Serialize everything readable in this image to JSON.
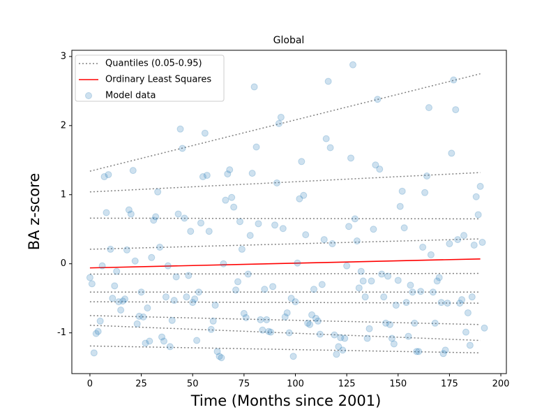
{
  "chart_data": {
    "type": "scatter",
    "title": "Global",
    "x_label": "Time (Months since 2001)",
    "y_label": "BA z-score",
    "xlim": [
      -8.8,
      202.7
    ],
    "ylim": [
      -1.59,
      3.09
    ],
    "xticks": [
      0,
      25,
      50,
      75,
      100,
      125,
      150,
      175,
      200
    ],
    "yticks": [
      -1,
      0,
      1,
      2,
      3
    ],
    "legend": "upper left",
    "series": [
      {
        "name": "Quantiles (0.05-0.95)",
        "color": "#808080",
        "style": "dotted",
        "x": [
          0,
          190
        ],
        "lines": [
          [
            -1.19,
            -1.29
          ],
          [
            -0.89,
            -1.11
          ],
          [
            -0.75,
            -0.88
          ],
          [
            -0.55,
            -0.57
          ],
          [
            -0.41,
            -0.41
          ],
          [
            -0.15,
            -0.14
          ],
          [
            0.21,
            0.36
          ],
          [
            0.66,
            0.65
          ],
          [
            1.04,
            1.32
          ],
          [
            1.34,
            2.75
          ]
        ]
      },
      {
        "name": "Ordinary Least Squares",
        "color": "#ff0000",
        "style": "solid",
        "x": [
          0,
          190
        ],
        "values": [
          -0.06,
          0.07
        ]
      },
      {
        "name": "Model data",
        "color": "#1f77b4",
        "style": "points",
        "x": [
          0,
          1,
          2,
          3,
          4,
          5,
          6,
          7,
          8,
          9,
          10,
          11,
          12,
          13,
          14,
          15,
          16,
          17,
          18,
          19,
          20,
          21,
          22,
          23,
          24,
          25,
          26,
          27,
          28,
          29,
          30,
          31,
          32,
          33,
          34,
          35,
          36,
          37,
          38,
          39,
          40,
          41,
          42,
          43,
          44,
          45,
          46,
          47,
          48,
          49,
          50,
          51,
          52,
          53,
          54,
          55,
          56,
          57,
          58,
          59,
          60,
          61,
          62,
          63,
          64,
          65,
          66,
          67,
          68,
          69,
          70,
          71,
          72,
          73,
          74,
          75,
          76,
          77,
          78,
          79,
          80,
          81,
          82,
          83,
          84,
          85,
          86,
          87,
          88,
          89,
          90,
          91,
          92,
          93,
          94,
          95,
          96,
          97,
          98,
          99,
          100,
          101,
          102,
          103,
          104,
          105,
          106,
          107,
          108,
          109,
          110,
          111,
          112,
          113,
          114,
          115,
          116,
          117,
          118,
          119,
          120,
          121,
          122,
          123,
          124,
          125,
          126,
          127,
          128,
          129,
          130,
          131,
          132,
          133,
          134,
          135,
          136,
          137,
          138,
          139,
          140,
          141,
          142,
          143,
          144,
          145,
          146,
          147,
          148,
          149,
          150,
          151,
          152,
          153,
          154,
          155,
          156,
          157,
          158,
          159,
          160,
          161,
          162,
          163,
          164,
          165,
          166,
          167,
          168,
          169,
          170,
          171,
          172,
          173,
          174,
          175,
          176,
          177,
          178,
          179,
          180,
          181,
          182,
          183,
          184,
          185,
          186,
          187,
          188,
          189,
          190,
          191,
          192
        ],
        "values": [
          -0.2,
          -0.29,
          -1.29,
          -1.01,
          -0.98,
          -0.83,
          -0.03,
          1.26,
          0.74,
          1.29,
          0.21,
          -0.5,
          -0.32,
          -0.11,
          -0.55,
          -0.67,
          -0.54,
          -0.51,
          0.2,
          0.78,
          0.72,
          1.35,
          0.04,
          -0.87,
          -0.76,
          -0.41,
          -0.77,
          -1.15,
          -0.64,
          -1.12,
          0.09,
          0.63,
          0.68,
          1.04,
          0.24,
          -1.06,
          -1.12,
          -0.48,
          -0.03,
          -1.2,
          -0.82,
          -0.53,
          -0.19,
          0.72,
          1.95,
          1.67,
          0.66,
          -0.48,
          -0.17,
          0.47,
          -0.56,
          -0.51,
          -1.11,
          -0.41,
          0.59,
          1.26,
          1.89,
          1.28,
          0.47,
          -0.95,
          -0.83,
          -0.6,
          -1.27,
          -1.34,
          -1.36,
          0,
          0.92,
          1.3,
          1.36,
          0.96,
          0.82,
          -0.38,
          -0.26,
          0.61,
          0.21,
          -0.72,
          -0.78,
          -0.15,
          0.41,
          1.31,
          2.56,
          1.69,
          0.58,
          -0.81,
          -0.96,
          -0.37,
          -0.81,
          -0.98,
          -0.99,
          -0.33,
          0.56,
          1.17,
          2.03,
          2.12,
          0.51,
          -0.77,
          -0.71,
          -1.0,
          -0.5,
          -1.34,
          -0.55,
          0.01,
          0.94,
          1.48,
          0.99,
          0.42,
          -0.86,
          -0.88,
          -0.74,
          -0.37,
          -0.79,
          -0.83,
          -1.02,
          -0.3,
          0.35,
          1.81,
          2.64,
          1.68,
          0.29,
          -1.03,
          -1.31,
          -1.2,
          -1.07,
          -1.25,
          -1.08,
          -0.03,
          0.54,
          1.53,
          2.88,
          0.65,
          0.33,
          -0.35,
          -0.11,
          -0.25,
          -0.48,
          -1.08,
          -0.94,
          -0.25,
          0.5,
          1.43,
          2.38,
          1.37,
          -0.15,
          -0.48,
          -0.86,
          -0.18,
          -0.88,
          -1.08,
          -1.16,
          -0.6,
          -0.24,
          0.83,
          1.05,
          0.52,
          -0.56,
          -1.05,
          -0.31,
          -0.41,
          -0.86,
          -1.27,
          -1.27,
          -0.4,
          0.24,
          1.03,
          1.27,
          2.26,
          0.13,
          -0.41,
          -0.86,
          -0.25,
          -0.2,
          -0.56,
          -1.3,
          -1.25,
          -0.57,
          0.29,
          1.6,
          2.66,
          2.23,
          0.35,
          -0.57,
          -0.52,
          0.41,
          -0.99,
          -0.71,
          -1.18,
          -0.48,
          0.27,
          0.97,
          0.71,
          1.12,
          0.31,
          -0.93
        ]
      }
    ]
  }
}
